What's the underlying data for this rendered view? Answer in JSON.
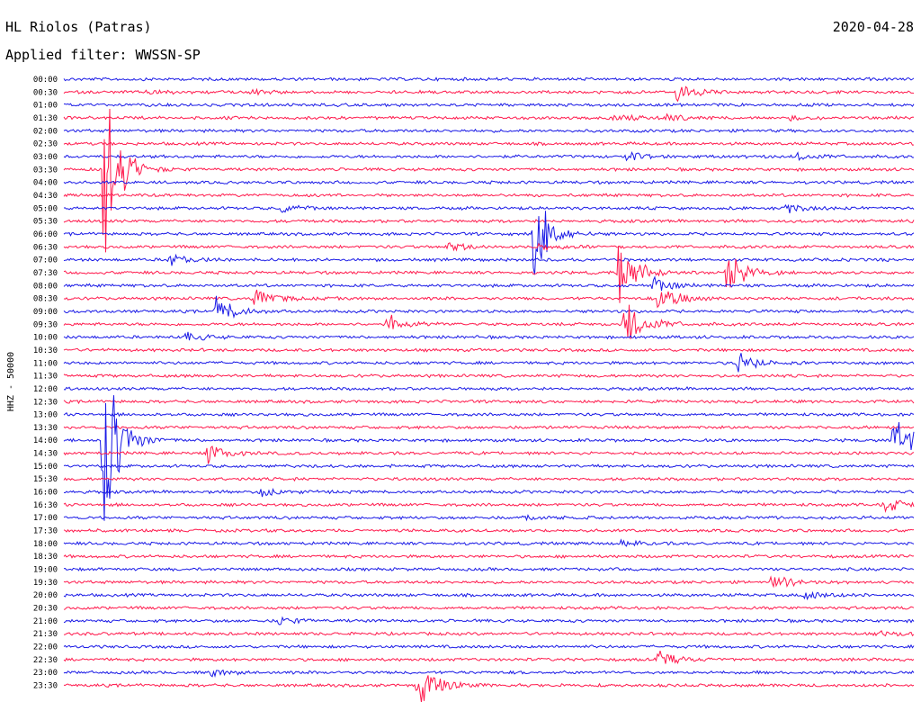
{
  "station": "HL Riolos (Patras)",
  "date": "2020-04-28",
  "filter": "Applied filter: WWSSN-SP",
  "channel_label": "HHZ - 50000",
  "colors": {
    "line_a": "#1a1ae6",
    "line_b": "#ff1a4d",
    "text": "#000000",
    "background": "#ffffff"
  },
  "chart_data": {
    "type": "line",
    "title": "HL Riolos (Patras)",
    "subtitle": "Applied filter: WWSSN-SP",
    "ylabel": "HHZ - 50000",
    "grid": false,
    "row_times": [
      "00:00",
      "00:30",
      "01:00",
      "01:30",
      "02:00",
      "02:30",
      "03:00",
      "03:30",
      "04:00",
      "04:30",
      "05:00",
      "05:30",
      "06:00",
      "06:30",
      "07:00",
      "07:30",
      "08:00",
      "08:30",
      "09:00",
      "09:30",
      "10:00",
      "10:30",
      "11:00",
      "11:30",
      "12:00",
      "12:30",
      "13:00",
      "13:30",
      "14:00",
      "14:30",
      "15:00",
      "15:30",
      "16:00",
      "16:30",
      "17:00",
      "17:30",
      "18:00",
      "18:30",
      "19:00",
      "19:30",
      "20:00",
      "20:30",
      "21:00",
      "21:30",
      "22:00",
      "22:30",
      "23:00",
      "23:30"
    ],
    "events": [
      {
        "row": 1,
        "minute": 21.5,
        "amp": 12
      },
      {
        "row": 1,
        "minute": 2.8,
        "amp": 3
      },
      {
        "row": 1,
        "minute": 6.5,
        "amp": 3
      },
      {
        "row": 3,
        "minute": 19.3,
        "amp": 5
      },
      {
        "row": 3,
        "minute": 21.2,
        "amp": 5
      },
      {
        "row": 3,
        "minute": 25.5,
        "amp": 3
      },
      {
        "row": 6,
        "minute": 19.8,
        "amp": 6
      },
      {
        "row": 6,
        "minute": 25.8,
        "amp": 6
      },
      {
        "row": 7,
        "minute": 1.3,
        "amp": 170
      },
      {
        "row": 10,
        "minute": 7.6,
        "amp": 6
      },
      {
        "row": 10,
        "minute": 25.4,
        "amp": 9
      },
      {
        "row": 12,
        "minute": 16.5,
        "amp": 80
      },
      {
        "row": 13,
        "minute": 13.5,
        "amp": 6
      },
      {
        "row": 13,
        "minute": 16.6,
        "amp": 5
      },
      {
        "row": 14,
        "minute": 3.6,
        "amp": 10
      },
      {
        "row": 15,
        "minute": 19.5,
        "amp": 40
      },
      {
        "row": 15,
        "minute": 23.3,
        "amp": 30
      },
      {
        "row": 16,
        "minute": 20.7,
        "amp": 12
      },
      {
        "row": 17,
        "minute": 6.6,
        "amp": 15
      },
      {
        "row": 17,
        "minute": 20.9,
        "amp": 18
      },
      {
        "row": 18,
        "minute": 5.3,
        "amp": 20
      },
      {
        "row": 19,
        "minute": 11.3,
        "amp": 14
      },
      {
        "row": 19,
        "minute": 19.7,
        "amp": 40
      },
      {
        "row": 20,
        "minute": 4.2,
        "amp": 6
      },
      {
        "row": 22,
        "minute": 23.7,
        "amp": 14
      },
      {
        "row": 28,
        "minute": 29.2,
        "amp": 30
      },
      {
        "row": 28,
        "minute": 1.3,
        "amp": 170
      },
      {
        "row": 29,
        "minute": 5.0,
        "amp": 12
      },
      {
        "row": 32,
        "minute": 6.8,
        "amp": 6
      },
      {
        "row": 33,
        "minute": 28.9,
        "amp": 10
      },
      {
        "row": 34,
        "minute": 16.1,
        "amp": 5
      },
      {
        "row": 36,
        "minute": 19.6,
        "amp": 5
      },
      {
        "row": 39,
        "minute": 24.9,
        "amp": 10
      },
      {
        "row": 40,
        "minute": 26.0,
        "amp": 9
      },
      {
        "row": 42,
        "minute": 7.5,
        "amp": 5
      },
      {
        "row": 43,
        "minute": 28.8,
        "amp": 5
      },
      {
        "row": 45,
        "minute": 20.9,
        "amp": 10
      },
      {
        "row": 46,
        "minute": 5.1,
        "amp": 6
      },
      {
        "row": 47,
        "minute": 12.4,
        "amp": 38
      }
    ]
  }
}
